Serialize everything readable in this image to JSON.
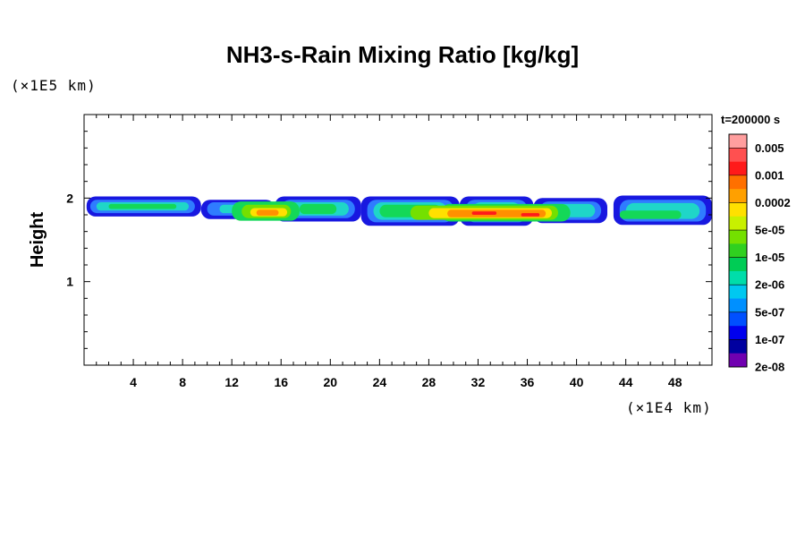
{
  "chart_data": {
    "type": "heatmap",
    "title": "NH3-s-Rain Mixing Ratio [kg/kg]",
    "ylabel": "Height",
    "xlabel": "",
    "x_unit": "(×1E4 km)",
    "y_unit": "(×1E5 km)",
    "time_label": "t=200000 s",
    "xlim": [
      0,
      51
    ],
    "ylim": [
      0,
      3
    ],
    "x_ticks": [
      4,
      8,
      12,
      16,
      20,
      24,
      28,
      32,
      36,
      40,
      44,
      48
    ],
    "y_ticks": [
      1,
      2
    ],
    "colorbar": {
      "labels": [
        "0.005",
        "0.001",
        "0.0002",
        "5e-05",
        "1e-05",
        "2e-06",
        "5e-07",
        "1e-07",
        "2e-08"
      ],
      "colors": [
        "#ff9e9e",
        "#ff5050",
        "#ff1a1a",
        "#ff7000",
        "#ffa000",
        "#ffe000",
        "#c8f000",
        "#74e000",
        "#30d020",
        "#00cc55",
        "#00ddaa",
        "#00c8f0",
        "#0090ff",
        "#0050ff",
        "#0000ee",
        "#0000a0",
        "#7000b0"
      ]
    },
    "field_layers": [
      {
        "level": "2e-08",
        "color": "#1818e0",
        "segments": [
          [
            0.2,
            9.5,
            1.78,
            2.02
          ],
          [
            9.5,
            15.5,
            1.75,
            1.98
          ],
          [
            15.5,
            22.5,
            1.72,
            2.02
          ],
          [
            22.5,
            30.5,
            1.67,
            2.02
          ],
          [
            30.5,
            36.5,
            1.67,
            2.02
          ],
          [
            36.5,
            42.5,
            1.7,
            2.0
          ],
          [
            43.0,
            51.0,
            1.68,
            2.03
          ]
        ]
      },
      {
        "level": "1e-07",
        "color": "#2f7cff",
        "segments": [
          [
            0.5,
            9.0,
            1.82,
            1.98
          ],
          [
            10.0,
            15.0,
            1.79,
            1.95
          ],
          [
            16.0,
            22.0,
            1.76,
            1.98
          ],
          [
            23.0,
            30.0,
            1.71,
            1.98
          ],
          [
            31.0,
            36.0,
            1.71,
            1.98
          ],
          [
            37.0,
            42.0,
            1.74,
            1.96
          ],
          [
            43.5,
            50.5,
            1.72,
            1.98
          ]
        ]
      },
      {
        "level": "5e-07",
        "color": "#1fd6c8",
        "segments": [
          [
            1.0,
            8.5,
            1.85,
            1.95
          ],
          [
            11.0,
            14.5,
            1.82,
            1.92
          ],
          [
            16.5,
            21.5,
            1.79,
            1.95
          ],
          [
            23.5,
            29.5,
            1.74,
            1.95
          ],
          [
            31.5,
            35.5,
            1.74,
            1.95
          ],
          [
            37.5,
            41.5,
            1.77,
            1.93
          ],
          [
            44.0,
            50.0,
            1.75,
            1.94
          ]
        ]
      },
      {
        "level": "2e-06",
        "color": "#14d858",
        "segments": [
          [
            2.0,
            7.5,
            1.87,
            1.93
          ],
          [
            12.0,
            17.5,
            1.73,
            1.96
          ],
          [
            17.5,
            20.5,
            1.81,
            1.93
          ],
          [
            24.0,
            29.0,
            1.77,
            1.92
          ],
          [
            29.0,
            39.5,
            1.72,
            1.93
          ],
          [
            43.5,
            48.5,
            1.75,
            1.85
          ]
        ]
      },
      {
        "level": "1e-05",
        "color": "#74e000",
        "segments": [
          [
            12.8,
            16.8,
            1.76,
            1.92
          ],
          [
            26.5,
            38.5,
            1.74,
            1.91
          ]
        ]
      },
      {
        "level": "5e-05",
        "color": "#ffe000",
        "segments": [
          [
            13.5,
            16.5,
            1.78,
            1.88
          ],
          [
            28.0,
            38.0,
            1.76,
            1.88
          ]
        ]
      },
      {
        "level": "0.0002",
        "color": "#ff9000",
        "segments": [
          [
            14.0,
            15.8,
            1.79,
            1.86
          ],
          [
            29.5,
            37.5,
            1.77,
            1.86
          ]
        ]
      },
      {
        "level": "0.001",
        "color": "#ff1a1a",
        "segments": [
          [
            31.5,
            33.5,
            1.8,
            1.84
          ],
          [
            35.5,
            37.0,
            1.78,
            1.82
          ]
        ]
      }
    ]
  }
}
